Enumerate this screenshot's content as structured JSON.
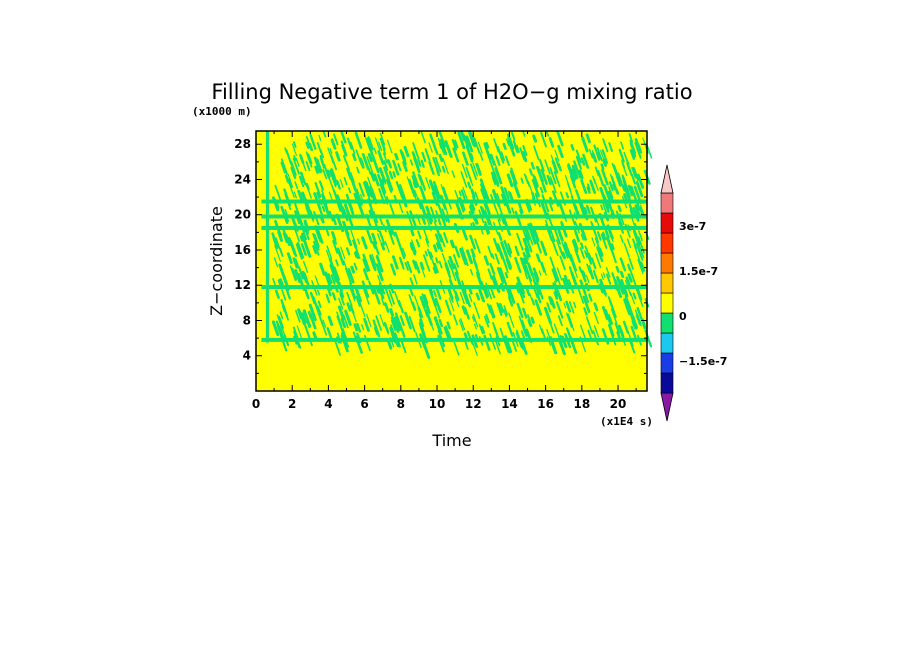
{
  "chart_data": {
    "type": "heatmap",
    "title": "Filling Negative term 1 of H2O−g mixing ratio",
    "xlabel": "Time",
    "ylabel": "Z−coordinate",
    "x_unit": "(x1E4 s)",
    "y_unit": "(x1000 m)",
    "xlim": [
      0,
      21.6
    ],
    "ylim": [
      0,
      29.5
    ],
    "x_ticks": [
      "0",
      "2",
      "4",
      "6",
      "8",
      "10",
      "12",
      "14",
      "16",
      "18",
      "20"
    ],
    "y_ticks": [
      "4",
      "8",
      "12",
      "16",
      "20",
      "24",
      "28"
    ],
    "colorbar": {
      "colors": [
        "#8a1aa6",
        "#0a0a9a",
        "#1a3ce6",
        "#1ac8f0",
        "#0fe070",
        "#ffff00",
        "#ffc800",
        "#ff7800",
        "#ff3800",
        "#e60a0a",
        "#f07878",
        "#f8c8c8"
      ],
      "tick_labels": [
        "3e-7",
        "1.5e-7",
        "0",
        "−1.5e-7"
      ],
      "extend": "both"
    },
    "field_description": {
      "background_color": "#ffff00",
      "patch_color": "#0fe070",
      "bands_z": [
        5.8,
        11.8,
        18.5,
        19.8,
        21.5
      ]
    }
  }
}
